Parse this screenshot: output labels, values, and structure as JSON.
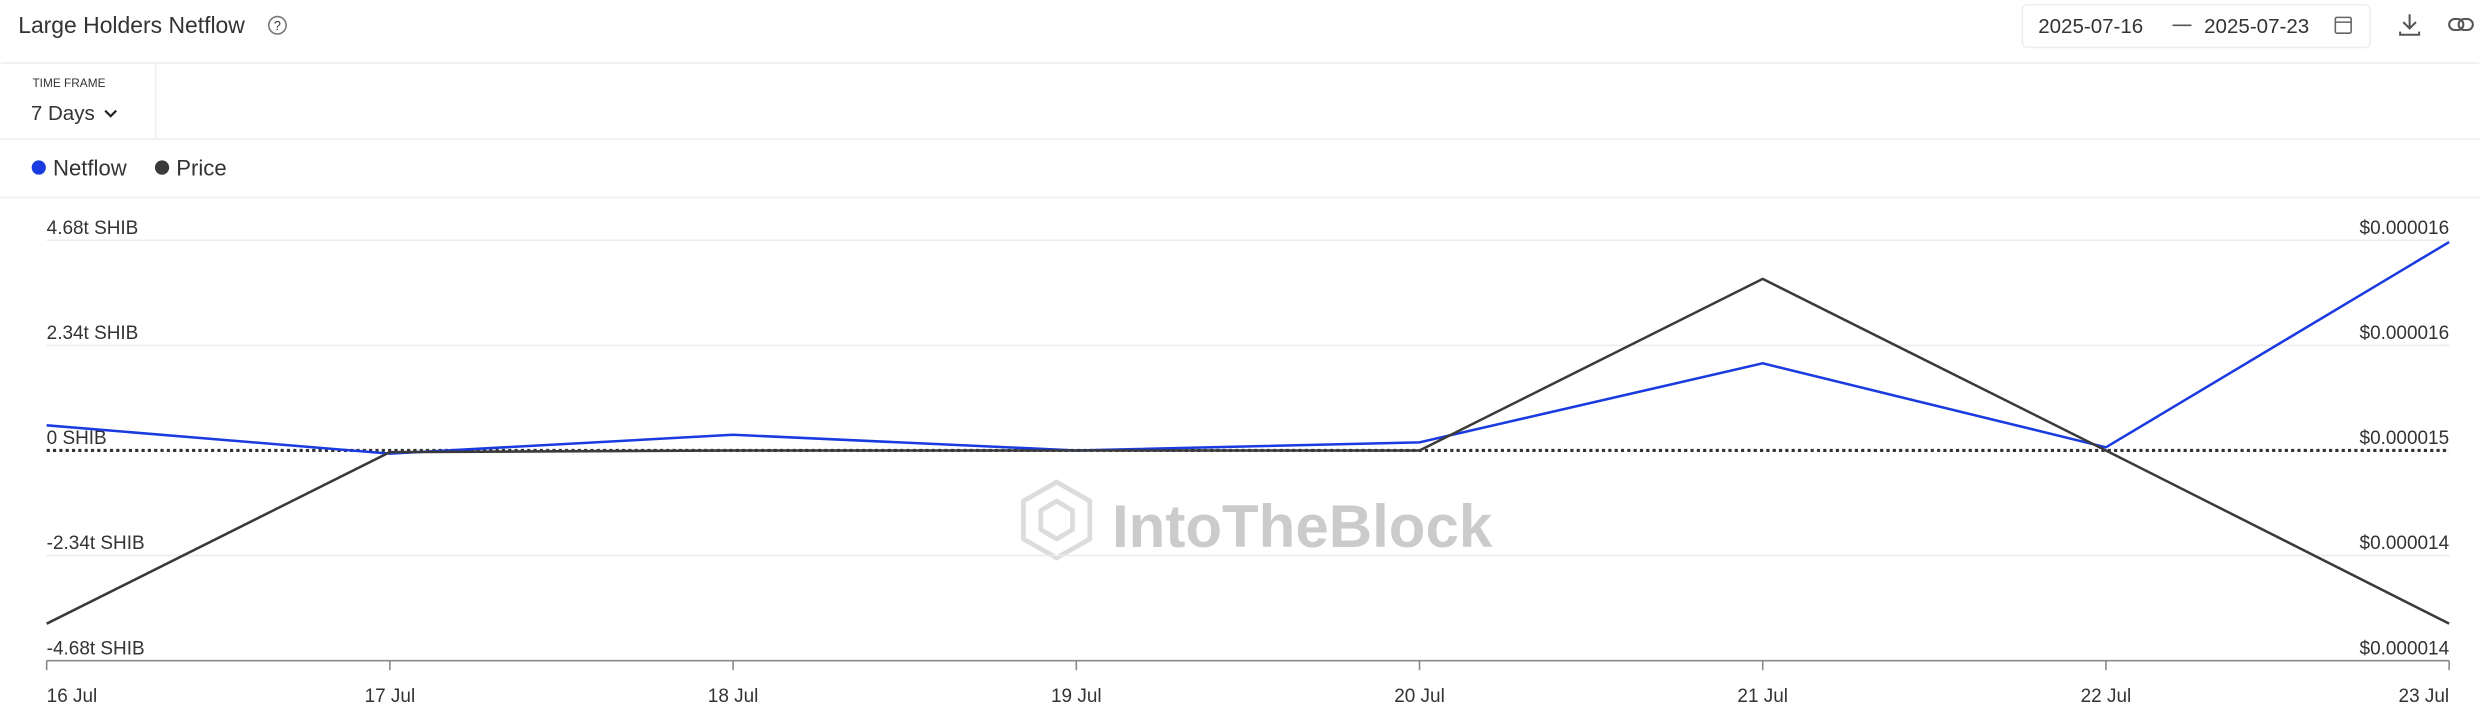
{
  "header": {
    "time_frame_label": "TIME FRAME",
    "time_frame": "7 Days",
    "date_from": "2025-07-16",
    "date_to": "2025-07-23",
    "watermark": "IntoTheBlock"
  },
  "chart_data": {
    "type": "line",
    "title": "Large Holders Netflow",
    "categories": [
      "16 Jul",
      "17 Jul",
      "18 Jul",
      "19 Jul",
      "20 Jul",
      "21 Jul",
      "22 Jul",
      "23 Jul"
    ],
    "series": [
      {
        "name": "Netflow",
        "color": "#1a3be0",
        "values": [
          0.56,
          -0.07,
          0.35,
          0.0,
          0.18,
          1.94,
          0.07,
          4.64
        ]
      },
      {
        "name": "Price",
        "color": "#3a3a3a",
        "axis": "y2",
        "values": [
          1.397e-05,
          1.499e-05,
          1.5e-05,
          1.5e-05,
          1.5e-05,
          1.602e-05,
          1.5e-05,
          1.397e-05
        ]
      }
    ],
    "ylim": [
      -4.68,
      4.68
    ],
    "yticks": [
      {
        "value": 4.68,
        "label": "4.68t SHIB"
      },
      {
        "value": 2.34,
        "label": "2.34t SHIB"
      },
      {
        "value": 0,
        "label": "0 SHIB"
      },
      {
        "value": -2.34,
        "label": "-2.34t SHIB"
      },
      {
        "value": -4.68,
        "label": "-4.68t SHIB"
      }
    ],
    "y2lim": [
      1.375e-05,
      1.625e-05
    ],
    "y2ticks": [
      {
        "value": 1.625e-05,
        "label": "$0.000016"
      },
      {
        "value": 1.5625e-05,
        "label": "$0.000016"
      },
      {
        "value": 1.5e-05,
        "label": "$0.000015"
      },
      {
        "value": 1.4375e-05,
        "label": "$0.000014"
      },
      {
        "value": 1.375e-05,
        "label": "$0.000014"
      }
    ],
    "grid": true,
    "legend": "top-left"
  }
}
